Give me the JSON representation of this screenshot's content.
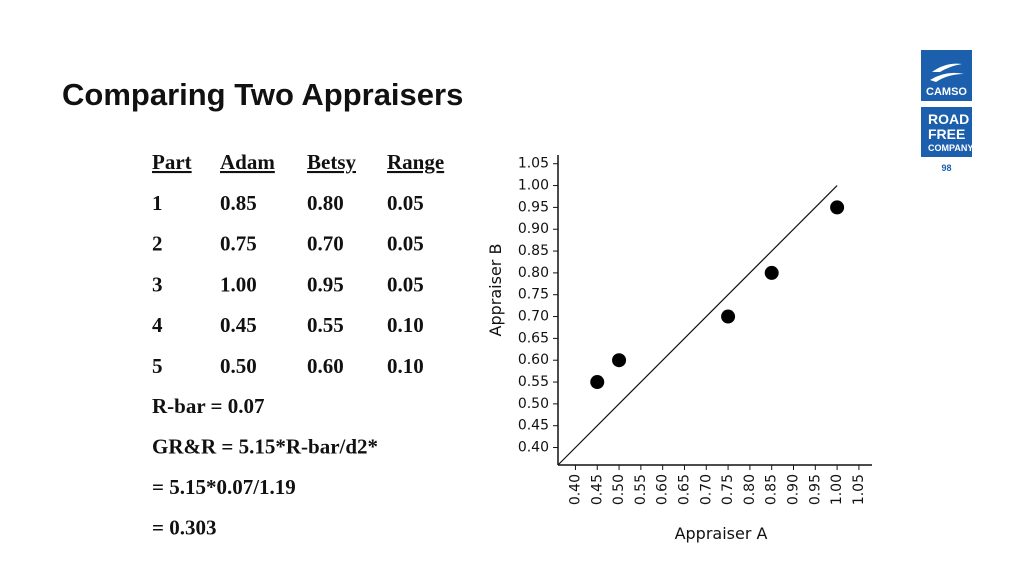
{
  "title": "Comparing Two Appraisers",
  "table": {
    "header": [
      "Part",
      "Adam",
      "Betsy",
      "Range"
    ],
    "rows": [
      [
        "1",
        "0.85",
        "0.80",
        "0.05"
      ],
      [
        "2",
        "0.75",
        "0.70",
        "0.05"
      ],
      [
        "3",
        "1.00",
        "0.95",
        "0.05"
      ],
      [
        "4",
        "0.45",
        "0.55",
        "0.10"
      ],
      [
        "5",
        "0.50",
        "0.60",
        "0.10"
      ]
    ]
  },
  "notes": [
    "R-bar = 0.07",
    "GR&R = 5.15*R-bar/d2*",
    "= 5.15*0.07/1.19",
    "= 0.303"
  ],
  "logo": {
    "brand": "CAMSO",
    "tagline": [
      "ROAD",
      "FREE",
      "COMPANY"
    ],
    "page": "98"
  },
  "chart_data": {
    "type": "scatter",
    "x_label": "Appraiser A",
    "y_label": "Appraiser B",
    "x": [
      0.45,
      0.5,
      0.75,
      0.85,
      1.0
    ],
    "values": [
      0.55,
      0.6,
      0.7,
      0.8,
      0.95
    ],
    "color": "#000000",
    "reference_line": {
      "x": [
        0.36,
        1.0
      ],
      "values": [
        0.36,
        1.0
      ]
    },
    "xlim": [
      0.36,
      1.08
    ],
    "ylim": [
      0.36,
      1.07
    ],
    "xticks": [
      {
        "value": 0.4,
        "label": "0.40"
      },
      0.45,
      {
        "value": 0.5,
        "label": "0.50"
      },
      0.55,
      {
        "value": 0.6,
        "label": "0.60"
      },
      0.65,
      {
        "value": 0.7,
        "label": "0.70"
      },
      0.75,
      {
        "value": 0.8,
        "label": "0.80"
      },
      0.85,
      {
        "value": 0.9,
        "label": "0.90"
      },
      0.95,
      {
        "value": 1.0,
        "label": "1.00"
      },
      1.05
    ],
    "yticks": [
      {
        "value": 0.4,
        "label": "0.40"
      },
      0.45,
      {
        "value": 0.5,
        "label": "0.50"
      },
      0.55,
      {
        "value": 0.6,
        "label": "0.60"
      },
      0.65,
      {
        "value": 0.7,
        "label": "0.70"
      },
      0.75,
      {
        "value": 0.8,
        "label": "0.80"
      },
      0.85,
      {
        "value": 0.9,
        "label": "0.90"
      },
      0.95,
      {
        "value": 1.0,
        "label": "1.00"
      },
      1.05
    ],
    "grid": false
  }
}
